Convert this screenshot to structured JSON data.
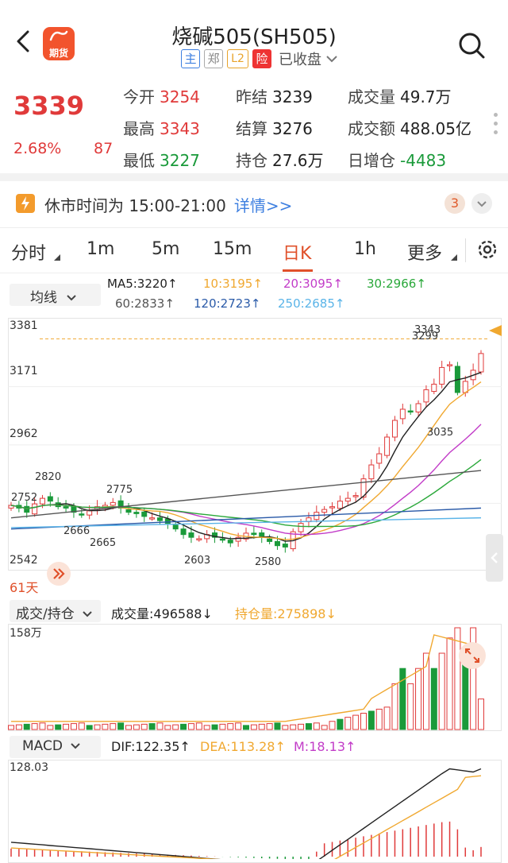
{
  "header": {
    "title": "烧碱505(SH505)",
    "app_badge": "期货",
    "tags": [
      "主",
      "郑",
      "L2",
      "险"
    ],
    "status": "已收盘"
  },
  "quote": {
    "price": "3339",
    "change_pct": "2.68%",
    "change": "87",
    "rows": [
      [
        {
          "label": "今开",
          "value": "3254",
          "color": "red"
        },
        {
          "label": "昨结",
          "value": "3239",
          "color": "dark"
        },
        {
          "label": "成交量",
          "value": "49.7万",
          "color": "dark"
        }
      ],
      [
        {
          "label": "最高",
          "value": "3343",
          "color": "red"
        },
        {
          "label": "结算",
          "value": "3276",
          "color": "dark"
        },
        {
          "label": "成交额",
          "value": "488.05亿",
          "color": "dark"
        }
      ],
      [
        {
          "label": "最低",
          "value": "3227",
          "color": "green"
        },
        {
          "label": "持仓",
          "value": "27.6万",
          "color": "dark"
        },
        {
          "label": "日增仓",
          "value": "-4483",
          "color": "green"
        }
      ]
    ]
  },
  "notice": {
    "text": "休市时间为 15:00-21:00",
    "link": "详情>>",
    "count": "3"
  },
  "tabs": [
    "分时",
    "1m",
    "5m",
    "15m",
    "日K",
    "1h",
    "更多"
  ],
  "active_tab": "日K",
  "ma_legend": {
    "button": "均线",
    "items": [
      {
        "text": "MA5:3220↑",
        "color": "#222222"
      },
      {
        "text": "10:3195↑",
        "color": "#f0a830"
      },
      {
        "text": "20:3095↑",
        "color": "#c23cc8"
      },
      {
        "text": "30:2966↑",
        "color": "#2aa83a"
      },
      {
        "text": "60:2833↑",
        "color": "#555555"
      },
      {
        "text": "120:2723↑",
        "color": "#2a5aa8"
      },
      {
        "text": "250:2685↑",
        "color": "#5ab4e8"
      }
    ]
  },
  "kline": {
    "axis_labels": [
      "3381",
      "3171",
      "2962",
      "2542"
    ],
    "annotations": [
      "3343",
      "3299",
      "3035",
      "2820",
      "2775",
      "2752",
      "2666",
      "2665",
      "2603",
      "2580"
    ],
    "days_label": "61天"
  },
  "volume_legend": {
    "button": "成交/持仓",
    "volume": "成交量:496588↓",
    "oi": "持仓量:275898↓",
    "axis_max": "158万"
  },
  "macd_legend": {
    "button": "MACD",
    "dif": "DIF:122.35↑",
    "dea": "DEA:113.28↑",
    "m": "M:18.13↑",
    "axis_max": "128.03"
  },
  "colors": {
    "up": "#e03a3a",
    "down": "#1a9a3a",
    "accent": "#e0502a",
    "link": "#3d7fe0"
  }
}
